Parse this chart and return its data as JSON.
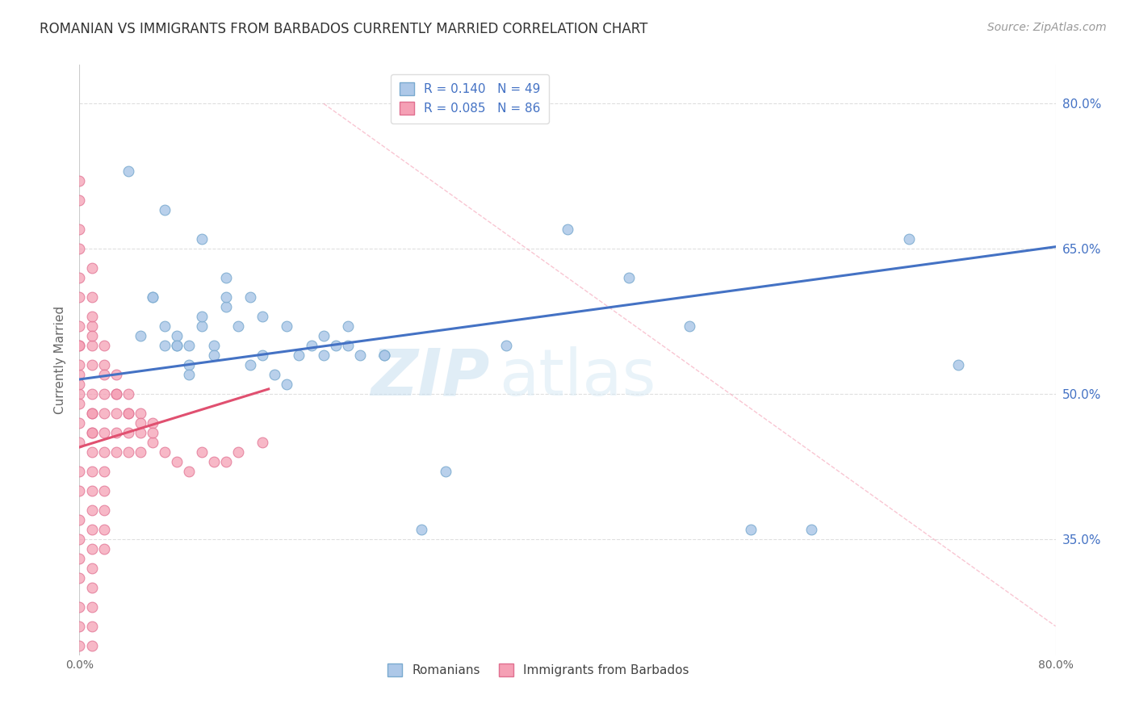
{
  "title": "ROMANIAN VS IMMIGRANTS FROM BARBADOS CURRENTLY MARRIED CORRELATION CHART",
  "source": "Source: ZipAtlas.com",
  "ylabel": "Currently Married",
  "xlabel": "",
  "xlim": [
    0.0,
    0.8
  ],
  "ylim": [
    0.23,
    0.84
  ],
  "xticks": [
    0.0,
    0.2,
    0.4,
    0.6,
    0.8
  ],
  "xticklabels": [
    "0.0%",
    "",
    "",
    "",
    "80.0%"
  ],
  "yticks": [
    0.35,
    0.5,
    0.65,
    0.8
  ],
  "yticklabels": [
    "35.0%",
    "50.0%",
    "65.0%",
    "80.0%"
  ],
  "right_ytick_labels": [
    "35.0%",
    "50.0%",
    "65.0%",
    "80.0%"
  ],
  "legend_entries": [
    {
      "label": "R = 0.140   N = 49",
      "color": "#adc8e8"
    },
    {
      "label": "R = 0.085   N = 86",
      "color": "#f5a0b5"
    }
  ],
  "legend_labels": [
    "Romanians",
    "Immigrants from Barbados"
  ],
  "blue_scatter_x": [
    0.04,
    0.07,
    0.1,
    0.12,
    0.14,
    0.15,
    0.17,
    0.19,
    0.2,
    0.21,
    0.22,
    0.23,
    0.06,
    0.07,
    0.08,
    0.08,
    0.09,
    0.09,
    0.1,
    0.11,
    0.11,
    0.12,
    0.13,
    0.14,
    0.16,
    0.17,
    0.18,
    0.22,
    0.25,
    0.28,
    0.3,
    0.35,
    0.4,
    0.45,
    0.5,
    0.55,
    0.6,
    0.68,
    0.72,
    0.05,
    0.06,
    0.07,
    0.08,
    0.09,
    0.1,
    0.12,
    0.15,
    0.2,
    0.25
  ],
  "blue_scatter_y": [
    0.73,
    0.69,
    0.66,
    0.62,
    0.6,
    0.58,
    0.57,
    0.55,
    0.56,
    0.55,
    0.57,
    0.54,
    0.6,
    0.57,
    0.55,
    0.56,
    0.55,
    0.53,
    0.57,
    0.55,
    0.54,
    0.59,
    0.57,
    0.53,
    0.52,
    0.51,
    0.54,
    0.55,
    0.54,
    0.36,
    0.42,
    0.55,
    0.67,
    0.62,
    0.57,
    0.36,
    0.36,
    0.66,
    0.53,
    0.56,
    0.6,
    0.55,
    0.55,
    0.52,
    0.58,
    0.6,
    0.54,
    0.54,
    0.54
  ],
  "pink_scatter_x": [
    0.0,
    0.0,
    0.0,
    0.0,
    0.0,
    0.0,
    0.0,
    0.0,
    0.0,
    0.0,
    0.0,
    0.0,
    0.0,
    0.0,
    0.0,
    0.0,
    0.0,
    0.0,
    0.0,
    0.0,
    0.0,
    0.01,
    0.01,
    0.01,
    0.01,
    0.01,
    0.01,
    0.01,
    0.01,
    0.01,
    0.01,
    0.01,
    0.01,
    0.01,
    0.01,
    0.01,
    0.01,
    0.01,
    0.01,
    0.01,
    0.01,
    0.01,
    0.02,
    0.02,
    0.02,
    0.02,
    0.02,
    0.02,
    0.02,
    0.02,
    0.02,
    0.02,
    0.02,
    0.03,
    0.03,
    0.03,
    0.03,
    0.03,
    0.04,
    0.04,
    0.04,
    0.04,
    0.05,
    0.05,
    0.05,
    0.06,
    0.06,
    0.07,
    0.08,
    0.09,
    0.1,
    0.11,
    0.12,
    0.13,
    0.15,
    0.02,
    0.03,
    0.04,
    0.05,
    0.06,
    0.0,
    0.0,
    0.0,
    0.0,
    0.01,
    0.01
  ],
  "pink_scatter_y": [
    0.72,
    0.7,
    0.67,
    0.65,
    0.62,
    0.6,
    0.57,
    0.55,
    0.52,
    0.5,
    0.47,
    0.45,
    0.42,
    0.4,
    0.37,
    0.35,
    0.33,
    0.31,
    0.28,
    0.26,
    0.24,
    0.63,
    0.6,
    0.57,
    0.55,
    0.53,
    0.5,
    0.48,
    0.46,
    0.44,
    0.42,
    0.4,
    0.38,
    0.36,
    0.34,
    0.32,
    0.3,
    0.28,
    0.26,
    0.24,
    0.48,
    0.46,
    0.55,
    0.53,
    0.5,
    0.48,
    0.46,
    0.44,
    0.42,
    0.4,
    0.38,
    0.36,
    0.34,
    0.52,
    0.5,
    0.48,
    0.46,
    0.44,
    0.5,
    0.48,
    0.46,
    0.44,
    0.48,
    0.46,
    0.44,
    0.47,
    0.45,
    0.44,
    0.43,
    0.42,
    0.44,
    0.43,
    0.43,
    0.44,
    0.45,
    0.52,
    0.5,
    0.48,
    0.47,
    0.46,
    0.55,
    0.53,
    0.51,
    0.49,
    0.58,
    0.56
  ],
  "blue_line_x": [
    0.0,
    0.8
  ],
  "blue_line_y": [
    0.515,
    0.652
  ],
  "pink_line_x": [
    0.0,
    0.155
  ],
  "pink_line_y": [
    0.445,
    0.505
  ],
  "ref_line_x": [
    0.2,
    0.8
  ],
  "ref_line_y": [
    0.8,
    0.26
  ],
  "scatter_size": 85,
  "blue_color": "#adc8e8",
  "blue_edge": "#7aaacf",
  "pink_color": "#f5a0b5",
  "pink_edge": "#e07090",
  "blue_line_color": "#4472c4",
  "pink_line_color": "#e05070",
  "ref_line_color": "#f5a0b5",
  "watermark_zip": "ZIP",
  "watermark_atlas": "atlas",
  "title_fontsize": 12,
  "axis_label_fontsize": 11,
  "tick_fontsize": 10,
  "legend_fontsize": 11,
  "source_fontsize": 10,
  "background_color": "#ffffff",
  "grid_color": "#d8d8d8"
}
